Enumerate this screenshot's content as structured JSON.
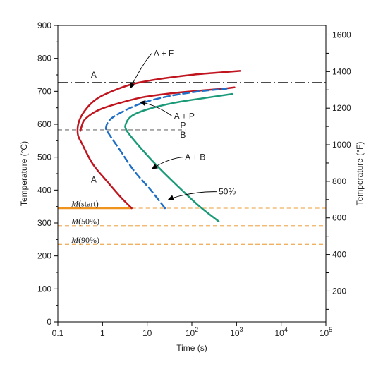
{
  "chart_data": {
    "type": "line",
    "title": "",
    "xlabel": "Time (s)",
    "ylabel": "Temperature (°C)",
    "y2label": "Temperature (°F)",
    "xscale": "log",
    "xlim": [
      0.1,
      100000
    ],
    "ylim": [
      0,
      900
    ],
    "y2lim": [
      32,
      1652
    ],
    "grid": false,
    "x_ticks": [
      {
        "value": 0.1,
        "label": "0.1"
      },
      {
        "value": 1,
        "label": "1"
      },
      {
        "value": 10,
        "label": "10"
      },
      {
        "value": 100,
        "base": "10",
        "exp": "2"
      },
      {
        "value": 1000,
        "base": "10",
        "exp": "3"
      },
      {
        "value": 10000,
        "base": "10",
        "exp": "4"
      },
      {
        "value": 100000,
        "base": "10",
        "exp": "5"
      }
    ],
    "y_ticks": [
      0,
      100,
      200,
      300,
      400,
      500,
      600,
      700,
      800,
      900
    ],
    "y_minor_ticks": [
      50,
      150,
      250,
      350,
      450,
      550,
      650,
      750,
      850
    ],
    "y2_ticks": [
      200,
      400,
      600,
      800,
      1000,
      1200,
      1400,
      1600
    ],
    "y2_minor_ticks": [
      100,
      300,
      500,
      700,
      900,
      1100,
      1300,
      1500
    ],
    "series": [
      {
        "color": "#c0141e",
        "style": "solid",
        "points": [
          [
            4.5,
            345
          ],
          [
            2.5,
            380
          ],
          [
            1.2,
            430
          ],
          [
            0.6,
            480
          ],
          [
            0.35,
            540
          ],
          [
            0.28,
            570
          ],
          [
            0.3,
            610
          ],
          [
            0.45,
            650
          ],
          [
            0.8,
            680
          ],
          [
            2,
            705
          ],
          [
            5,
            723
          ],
          [
            20,
            738
          ],
          [
            100,
            750
          ],
          [
            400,
            757
          ],
          [
            1200,
            762
          ]
        ]
      },
      {
        "color": "#c0141e",
        "style": "solid",
        "points": [
          [
            0.32,
            580
          ],
          [
            0.38,
            610
          ],
          [
            0.55,
            630
          ],
          [
            1,
            648
          ],
          [
            2.5,
            665
          ],
          [
            8,
            682
          ],
          [
            30,
            693
          ],
          [
            150,
            702
          ],
          [
            500,
            708
          ],
          [
            900,
            712
          ]
        ]
      },
      {
        "color": "#1f6fc6",
        "style": "dashed",
        "points": [
          [
            25,
            345
          ],
          [
            12,
            400
          ],
          [
            5,
            460
          ],
          [
            2.5,
            520
          ],
          [
            1.4,
            570
          ],
          [
            1.2,
            590
          ],
          [
            1.5,
            615
          ],
          [
            3,
            640
          ],
          [
            8,
            665
          ],
          [
            30,
            685
          ],
          [
            150,
            700
          ],
          [
            600,
            708
          ]
        ]
      },
      {
        "color": "#1a9a78",
        "style": "solid",
        "points": [
          [
            400,
            305
          ],
          [
            150,
            350
          ],
          [
            50,
            410
          ],
          [
            15,
            480
          ],
          [
            6,
            540
          ],
          [
            3.5,
            580
          ],
          [
            3.3,
            600
          ],
          [
            4.5,
            625
          ],
          [
            10,
            645
          ],
          [
            40,
            665
          ],
          [
            200,
            680
          ],
          [
            800,
            692
          ]
        ]
      }
    ],
    "reference_lines": [
      {
        "y": 727,
        "style": "dashdot",
        "color": "#333333"
      },
      {
        "y": 583,
        "x_to": 70,
        "style": "dashed",
        "color": "#888888"
      },
      {
        "y": 345,
        "x_to": 4.5,
        "style": "solid",
        "color": "#f0931e"
      },
      {
        "y": 345,
        "x_from": 4.5,
        "style": "dashed",
        "color": "#f0b060"
      },
      {
        "y": 292,
        "style": "dashed",
        "color": "#f0b060"
      },
      {
        "y": 235,
        "style": "dashed",
        "color": "#f0b060"
      }
    ],
    "annotations": [
      {
        "text": "A",
        "x": 0.55,
        "y": 750
      },
      {
        "text": "A",
        "x": 0.55,
        "y": 432
      },
      {
        "text": "P",
        "x": 55,
        "y": 597
      },
      {
        "text": "B",
        "x": 55,
        "y": 568
      },
      {
        "text": "A + F",
        "x": 14,
        "y": 815,
        "arrow_to": [
          4.2,
          710
        ]
      },
      {
        "text": "A + P",
        "x": 40,
        "y": 625,
        "arrow_to": [
          7,
          667
        ]
      },
      {
        "text": "A + B",
        "x": 70,
        "y": 500,
        "arrow_to": [
          13,
          465
        ]
      },
      {
        "text": "50%",
        "x": 400,
        "y": 395,
        "arrow_to": [
          30,
          372
        ]
      }
    ],
    "m_labels": [
      {
        "letter": "M",
        "rest": "(start)",
        "x": 0.2,
        "y": 350
      },
      {
        "letter": "M",
        "rest": "(50%)",
        "x": 0.2,
        "y": 297
      },
      {
        "letter": "M",
        "rest": "(90%)",
        "x": 0.2,
        "y": 240
      }
    ]
  }
}
